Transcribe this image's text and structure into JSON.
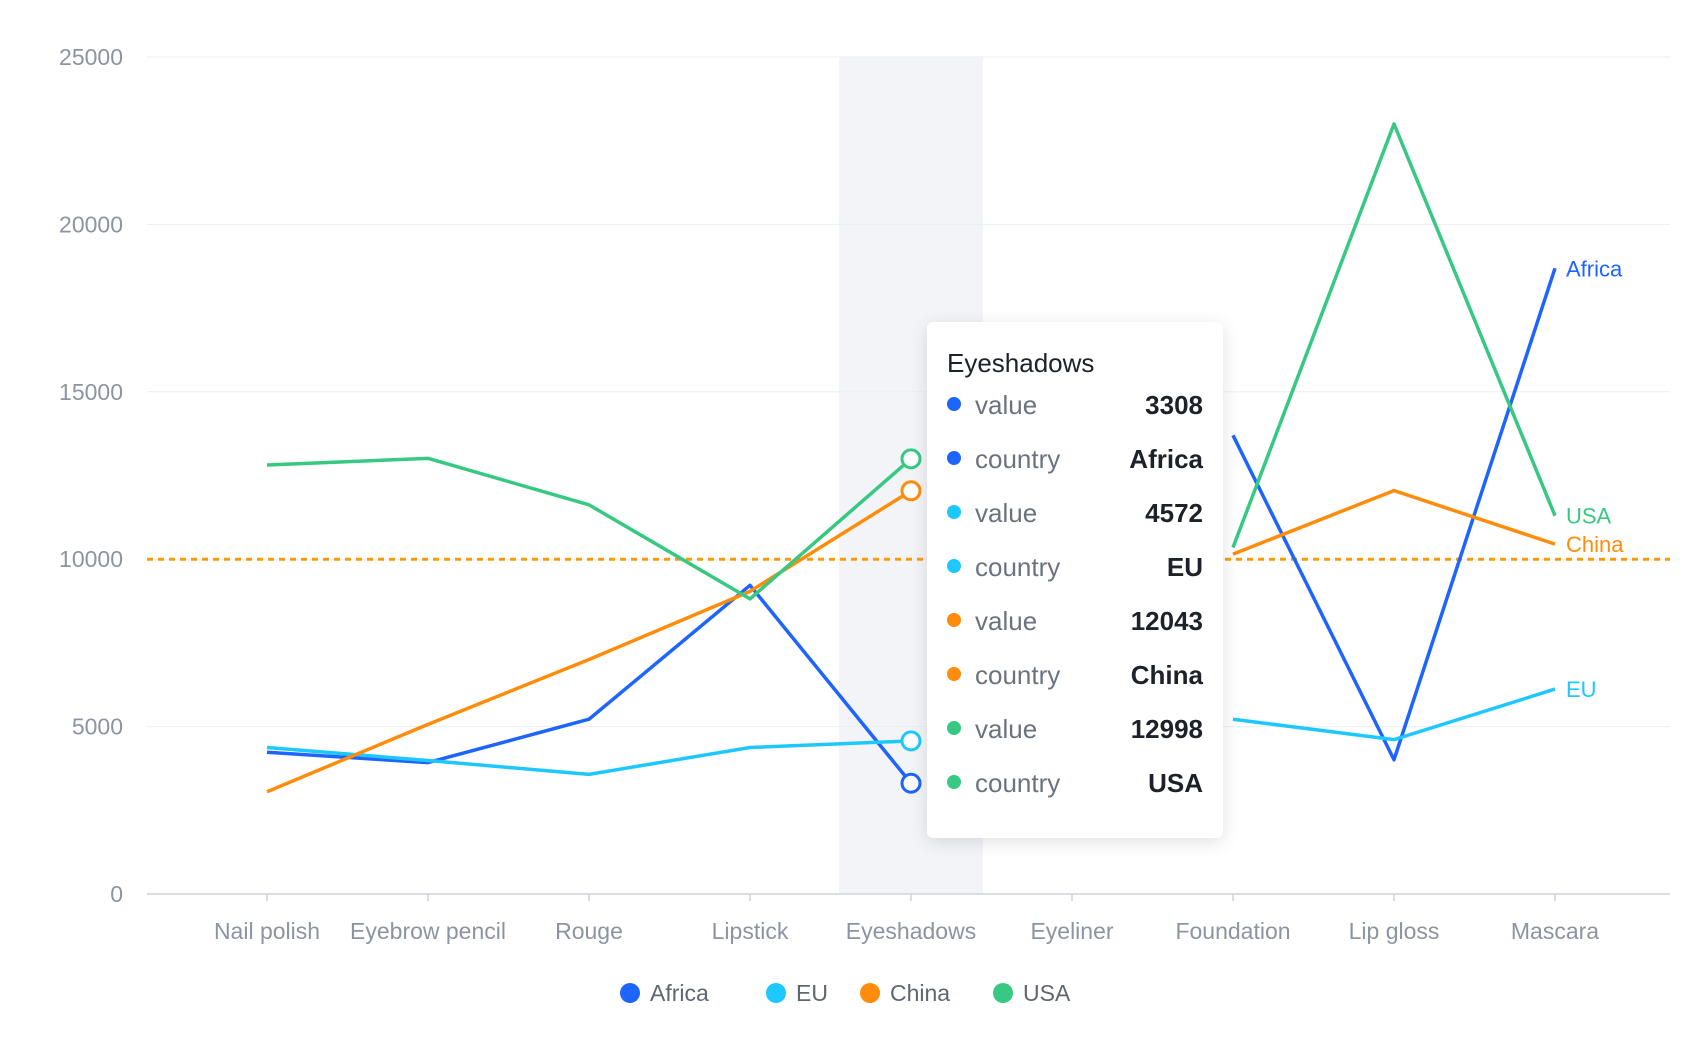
{
  "chart_data": {
    "type": "line",
    "categories": [
      "Nail polish",
      "Eyebrow pencil",
      "Rouge",
      "Lipstick",
      "Eyeshadows",
      "Eyeliner",
      "Foundation",
      "Lip gloss",
      "Mascara"
    ],
    "series": [
      {
        "name": "Africa",
        "color": "#1e64ff",
        "values": [
          4234,
          3925,
          5220,
          9220,
          3308,
          null,
          13700,
          4010,
          18690
        ]
      },
      {
        "name": "EU",
        "color": "#1ec8ff",
        "values": [
          4376,
          3987,
          3574,
          4376,
          4572,
          null,
          5220,
          4610,
          6120
        ]
      },
      {
        "name": "China",
        "color": "#ff8c0a",
        "values": [
          3054,
          5067,
          7004,
          9040,
          12043,
          null,
          10150,
          12050,
          10450
        ]
      },
      {
        "name": "USA",
        "color": "#37c882",
        "values": [
          12814,
          13012,
          11624,
          8814,
          12998,
          null,
          10350,
          23000,
          11300
        ]
      }
    ],
    "y_ticks": [
      "0",
      "5000",
      "10000",
      "15000",
      "20000",
      "25000"
    ],
    "ylim": [
      0,
      25000
    ],
    "reference_line": {
      "value": 10000,
      "color": "#fa9b0a",
      "style": "dotted"
    },
    "end_labels": [
      "Africa",
      "USA",
      "China",
      "EU"
    ],
    "highlight_category": "Eyeshadows",
    "grid": true,
    "legend_position": "bottom",
    "xlabel": "",
    "ylabel": ""
  },
  "legend": [
    {
      "label": "Africa",
      "color": "#1e64ff"
    },
    {
      "label": "EU",
      "color": "#1ec8ff"
    },
    {
      "label": "China",
      "color": "#ff8c0a"
    },
    {
      "label": "USA",
      "color": "#37c882"
    }
  ],
  "tooltip": {
    "title": "Eyeshadows",
    "rows": [
      {
        "key": "value",
        "val": "3308",
        "color": "#1e64ff"
      },
      {
        "key": "country",
        "val": "Africa",
        "color": "#1e64ff"
      },
      {
        "key": "value",
        "val": "4572",
        "color": "#1ec8ff"
      },
      {
        "key": "country",
        "val": "EU",
        "color": "#1ec8ff"
      },
      {
        "key": "value",
        "val": "12043",
        "color": "#ff8c0a"
      },
      {
        "key": "country",
        "val": "China",
        "color": "#ff8c0a"
      },
      {
        "key": "value",
        "val": "12998",
        "color": "#37c882"
      },
      {
        "key": "country",
        "val": "USA",
        "color": "#37c882"
      }
    ]
  }
}
